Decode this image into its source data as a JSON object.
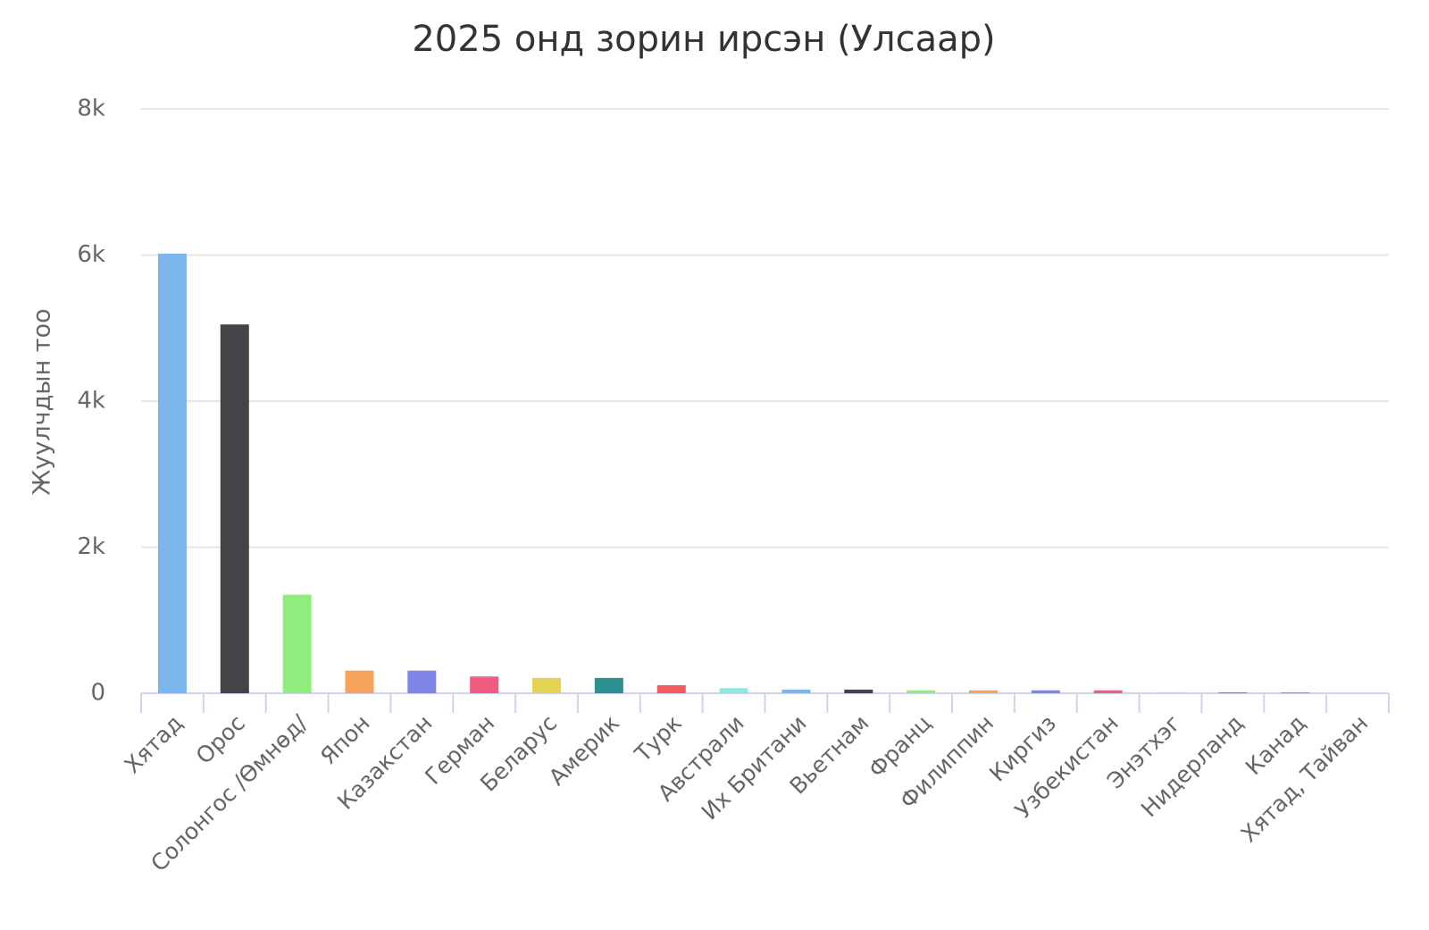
{
  "chart_data": {
    "type": "bar",
    "title": "2025 онд зорин ирсэн (Улсаар)",
    "y_axis_title": "Жуулчдын тоо",
    "categories": [
      "Хятад",
      "Орос",
      "Солонгос /Өмнөд/",
      "Япон",
      "Казакстан",
      "Герман",
      "Беларус",
      "Америк",
      "Турк",
      "Австрали",
      "Их Британи",
      "Вьетнам",
      "Франц",
      "Филиппин",
      "Киргиз",
      "Узбекистан",
      "Энэтхэг",
      "Нидерланд",
      "Канад",
      "Хятад, Тайван"
    ],
    "values": [
      6020,
      5050,
      1350,
      310,
      310,
      230,
      210,
      210,
      110,
      70,
      50,
      50,
      40,
      40,
      40,
      40,
      10,
      10,
      10,
      5
    ],
    "colors": [
      "#7cb5ec",
      "#434348",
      "#90ed7d",
      "#f7a35c",
      "#8085e9",
      "#f15c80",
      "#e4d354",
      "#2b908f",
      "#f45b5b",
      "#91e8e1",
      "#7cb5ec",
      "#434348",
      "#90ed7d",
      "#f7a35c",
      "#8085e9",
      "#f15c80",
      "#e4d354",
      "#2b908f",
      "#f45b5b",
      "#91e8e1"
    ],
    "ylim": [
      0,
      8000
    ],
    "yticks": [
      0,
      {
        "value": 2000,
        "label": "2k"
      },
      {
        "value": 4000,
        "label": "4k"
      },
      {
        "value": 6000,
        "label": "6k"
      },
      {
        "value": 8000,
        "label": "8k"
      }
    ],
    "grid": true
  }
}
